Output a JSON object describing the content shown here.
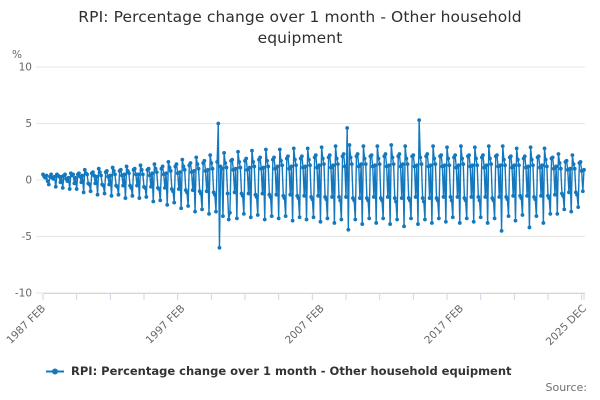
{
  "title": "RPI: Percentage change over 1 month - Other household equipment",
  "y_axis_unit_label": "%",
  "y_ticks": [
    10,
    5,
    0,
    -5,
    -10
  ],
  "x_tick_labels": [
    "1987 FEB",
    "1997 FEB",
    "2007 FEB",
    "2017 FEB",
    "2025 DEC"
  ],
  "legend": {
    "label": "RPI: Percentage change over 1 month - Other household equipment",
    "marker": "line-with-dot"
  },
  "source_label": "Source:",
  "colors": {
    "series": "#1478be",
    "grid": "#e6e6e6",
    "axis": "#ccd6eb",
    "tick_text": "#666666",
    "title_text": "#2f2f2f",
    "legend_text": "#333333",
    "source_text": "#6f6f6f"
  },
  "chart_data": {
    "type": "line",
    "title": "RPI: Percentage change over 1 month - Other household equipment",
    "ylabel": "%",
    "xlabel": "",
    "frequency": "monthly",
    "start": "1987-02",
    "end": "2025-12",
    "ylim": [
      -10,
      10
    ],
    "grid": "horizontal-only",
    "legend_position": "bottom-center",
    "markers": true,
    "x_tick_label_months": [
      0,
      120,
      240,
      360,
      466
    ],
    "minor_tick_interval_months": 29,
    "values": [
      0.5,
      0.3,
      0.2,
      0.4,
      -0.1,
      -0.4,
      0.3,
      0.5,
      0.2,
      0.1,
      0.3,
      -0.6,
      0.5,
      0.4,
      0.3,
      -0.2,
      0.3,
      -0.7,
      0.4,
      0.5,
      0.1,
      -0.1,
      0.2,
      -0.8,
      0.6,
      0.4,
      0.5,
      -0.3,
      0.2,
      -0.8,
      0.5,
      0.6,
      0.3,
      -0.2,
      0.4,
      -1.1,
      0.9,
      0.6,
      0.5,
      -0.3,
      -0.4,
      -1.0,
      0.6,
      0.7,
      0.4,
      -0.3,
      0.3,
      -1.3,
      1.0,
      0.7,
      0.4,
      -0.4,
      -0.5,
      -1.2,
      0.7,
      0.8,
      0.3,
      -0.4,
      0.4,
      -1.4,
      1.1,
      0.8,
      0.5,
      -0.5,
      -0.6,
      -1.3,
      0.8,
      0.9,
      0.4,
      -0.5,
      0.5,
      -1.6,
      1.2,
      0.8,
      0.6,
      -0.5,
      -0.7,
      -1.4,
      0.9,
      1.0,
      0.5,
      -0.5,
      0.5,
      -1.6,
      1.3,
      0.9,
      0.5,
      -0.6,
      -0.7,
      -1.5,
      0.9,
      1.0,
      0.4,
      -0.6,
      0.6,
      -1.9,
      1.4,
      1.0,
      0.7,
      -0.7,
      -0.8,
      -1.8,
      1.0,
      1.2,
      0.5,
      -0.7,
      0.6,
      -2.2,
      1.6,
      1.1,
      0.8,
      -0.8,
      -1.0,
      -2.0,
      1.2,
      1.4,
      0.6,
      -0.8,
      0.7,
      -2.5,
      1.8,
      1.2,
      0.9,
      -0.9,
      -1.1,
      -2.3,
      1.3,
      1.5,
      0.7,
      -0.9,
      0.8,
      -2.8,
      2.0,
      1.4,
      1.0,
      -1.0,
      -1.2,
      -2.6,
      1.5,
      1.7,
      0.8,
      -1.0,
      0.9,
      -3.0,
      2.2,
      1.5,
      1.0,
      -1.1,
      -1.3,
      -2.8,
      1.6,
      5.0,
      -6.0,
      1.2,
      1.0,
      -3.2,
      2.4,
      1.5,
      1.1,
      -1.2,
      -3.5,
      -2.9,
      1.7,
      1.8,
      0.9,
      -1.1,
      1.0,
      -3.4,
      2.5,
      1.6,
      1.1,
      -1.2,
      -1.4,
      -3.0,
      1.7,
      1.9,
      0.9,
      -1.2,
      1.1,
      -3.3,
      2.6,
      1.6,
      1.2,
      -1.3,
      -1.5,
      -3.1,
      1.8,
      2.0,
      1.0,
      -1.2,
      1.1,
      -3.5,
      2.7,
      1.7,
      1.2,
      -1.3,
      -1.5,
      -3.2,
      1.8,
      2.0,
      1.0,
      -1.3,
      1.2,
      -3.4,
      2.7,
      1.7,
      1.3,
      -1.4,
      -1.6,
      -3.2,
      1.9,
      2.1,
      1.0,
      -1.3,
      1.2,
      -3.6,
      2.8,
      1.8,
      1.3,
      -1.4,
      -1.6,
      -3.3,
      1.9,
      2.1,
      1.1,
      -1.4,
      1.2,
      -3.5,
      2.8,
      1.8,
      1.3,
      -1.5,
      -1.7,
      -3.3,
      2.0,
      2.2,
      1.1,
      -1.4,
      1.3,
      -3.7,
      2.9,
      1.9,
      1.4,
      -1.5,
      -1.7,
      -3.4,
      2.0,
      2.2,
      1.1,
      -1.5,
      1.3,
      -3.8,
      3.0,
      1.9,
      1.4,
      -1.5,
      -1.8,
      -3.5,
      2.1,
      2.3,
      1.2,
      -1.5,
      4.6,
      -4.4,
      3.1,
      2.0,
      1.4,
      -1.6,
      -1.8,
      -3.5,
      2.1,
      2.3,
      1.2,
      -1.6,
      1.4,
      -3.9,
      3.0,
      1.9,
      1.4,
      -1.6,
      -1.8,
      -3.4,
      2.1,
      2.2,
      1.2,
      -1.5,
      1.3,
      -3.8,
      3.0,
      1.9,
      1.4,
      -1.6,
      -1.8,
      -3.4,
      2.1,
      2.3,
      1.2,
      -1.5,
      1.3,
      -3.9,
      3.1,
      2.0,
      1.4,
      -1.6,
      -1.9,
      -3.5,
      2.1,
      2.3,
      1.2,
      -1.6,
      1.4,
      -4.1,
      3.0,
      1.9,
      1.4,
      -1.6,
      -1.8,
      -3.4,
      2.1,
      2.2,
      1.2,
      -1.5,
      1.3,
      -3.9,
      5.3,
      2.0,
      1.4,
      -1.6,
      -1.9,
      -3.5,
      2.1,
      2.3,
      1.2,
      -1.6,
      1.3,
      -3.8,
      3.0,
      1.9,
      1.4,
      -1.6,
      -1.8,
      -3.4,
      2.1,
      2.2,
      1.2,
      -1.5,
      1.3,
      -3.7,
      2.9,
      1.9,
      1.3,
      -1.5,
      -1.8,
      -3.3,
      2.0,
      2.2,
      1.1,
      -1.5,
      1.3,
      -3.8,
      3.0,
      1.9,
      1.4,
      -1.6,
      -1.8,
      -3.4,
      2.1,
      2.2,
      1.2,
      -1.5,
      1.3,
      -3.7,
      2.9,
      1.9,
      1.3,
      -1.5,
      -1.8,
      -3.3,
      2.0,
      2.2,
      1.1,
      -1.5,
      1.3,
      -3.8,
      3.0,
      1.9,
      1.4,
      -1.6,
      -1.8,
      -3.4,
      2.1,
      2.2,
      1.2,
      -1.5,
      1.3,
      -4.5,
      3.0,
      1.8,
      1.3,
      -1.5,
      -1.7,
      -3.2,
      2.0,
      2.1,
      1.1,
      -1.4,
      1.3,
      -3.6,
      2.8,
      1.8,
      1.3,
      -1.4,
      -1.6,
      -3.1,
      1.9,
      2.1,
      1.1,
      -1.4,
      1.2,
      -4.2,
      2.9,
      1.8,
      1.3,
      -1.5,
      -1.7,
      -3.2,
      2.0,
      2.1,
      1.1,
      -1.4,
      1.3,
      -3.8,
      2.8,
      1.8,
      1.2,
      -1.4,
      -1.6,
      -3.0,
      1.9,
      2.0,
      1.0,
      -1.3,
      1.2,
      -3.0,
      2.3,
      1.5,
      1.0,
      -1.2,
      -1.4,
      -2.6,
      1.6,
      1.7,
      0.9,
      -1.1,
      1.0,
      -2.8,
      2.2,
      1.4,
      1.0,
      -1.1,
      -1.3,
      -2.4,
      1.5,
      1.6,
      0.8,
      -1.0,
      0.9
    ]
  }
}
